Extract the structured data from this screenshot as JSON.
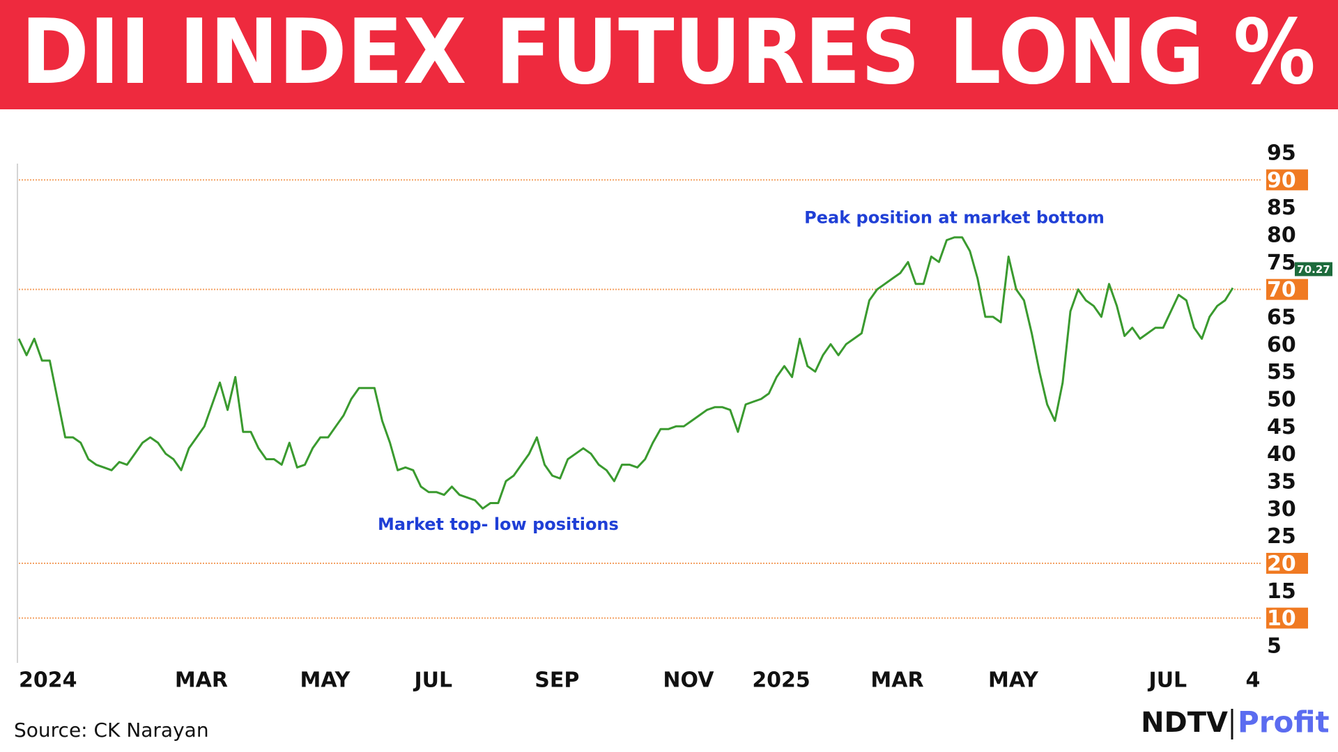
{
  "chart_data": {
    "type": "line",
    "title": "DII INDEX FUTURES LONG %",
    "source": "Source: CK Narayan",
    "logo": [
      "NDTV",
      "Profit"
    ],
    "series": [
      {
        "name": "DII index futures long %",
        "color": "#3a9a2f",
        "values": [
          61,
          58,
          61,
          57,
          57,
          50,
          43,
          43,
          42,
          39,
          38,
          37.5,
          37,
          38.5,
          38,
          40,
          42,
          43,
          42,
          40,
          39,
          37,
          41,
          43,
          45,
          49,
          53,
          48,
          54,
          44,
          44,
          41,
          39,
          39,
          38,
          42,
          37.5,
          38,
          41,
          43,
          43,
          45,
          47,
          50,
          52,
          52,
          52,
          46,
          42,
          37,
          37.5,
          37,
          34,
          33,
          33,
          32.5,
          34,
          32.5,
          32,
          31.5,
          30,
          31,
          31,
          35,
          36,
          38,
          40,
          43,
          38,
          36,
          35.5,
          39,
          40,
          41,
          40,
          38,
          37,
          35,
          38,
          38,
          37.5,
          39,
          42,
          44.5,
          44.5,
          45,
          45,
          46,
          47,
          48,
          48.5,
          48.5,
          48,
          44,
          49,
          49.5,
          50,
          51,
          54,
          56,
          54,
          61,
          56,
          55,
          58,
          60,
          58,
          60,
          61,
          62,
          68,
          70,
          71,
          72,
          73,
          75,
          71,
          71,
          76,
          75,
          79,
          79.5,
          79.5,
          77,
          72,
          65,
          65,
          64,
          76,
          70,
          68,
          62,
          55,
          49,
          46,
          53,
          66,
          70,
          68,
          67,
          65,
          71,
          67,
          61.5,
          63,
          61,
          62,
          63,
          63,
          66,
          69,
          68,
          63,
          61,
          65,
          67,
          68,
          70.27
        ]
      }
    ],
    "xticks": [
      {
        "value": 0,
        "label": "2024"
      },
      {
        "value": 20,
        "label": "MAR"
      },
      {
        "value": 36,
        "label": "MAY"
      },
      {
        "value": 50,
        "label": "JUL"
      },
      {
        "value": 66,
        "label": "SEP"
      },
      {
        "value": 83,
        "label": "NOV"
      },
      {
        "value": 95,
        "label": "2025"
      },
      {
        "value": 110,
        "label": "MAR"
      },
      {
        "value": 125,
        "label": "MAY"
      },
      {
        "value": 145,
        "label": "JUL"
      },
      {
        "value": 156,
        "label": "4"
      }
    ],
    "xlim": [
      0,
      157
    ],
    "ylim": [
      5,
      95
    ],
    "yticks": [
      95,
      90,
      85,
      80,
      75,
      70,
      65,
      60,
      55,
      50,
      45,
      40,
      35,
      30,
      25,
      20,
      15,
      10,
      5
    ],
    "highlight_levels": [
      90,
      70,
      20,
      10
    ],
    "highlight_color": "#f07a22",
    "last_value_color": "#1d6b3c",
    "annotations": [
      {
        "text": "Peak position at market bottom",
        "x": 121,
        "y": 83,
        "color": "#1f3fd6"
      },
      {
        "text": "Market top- low positions",
        "x": 62,
        "y": 27,
        "color": "#1f3fd6"
      }
    ]
  }
}
